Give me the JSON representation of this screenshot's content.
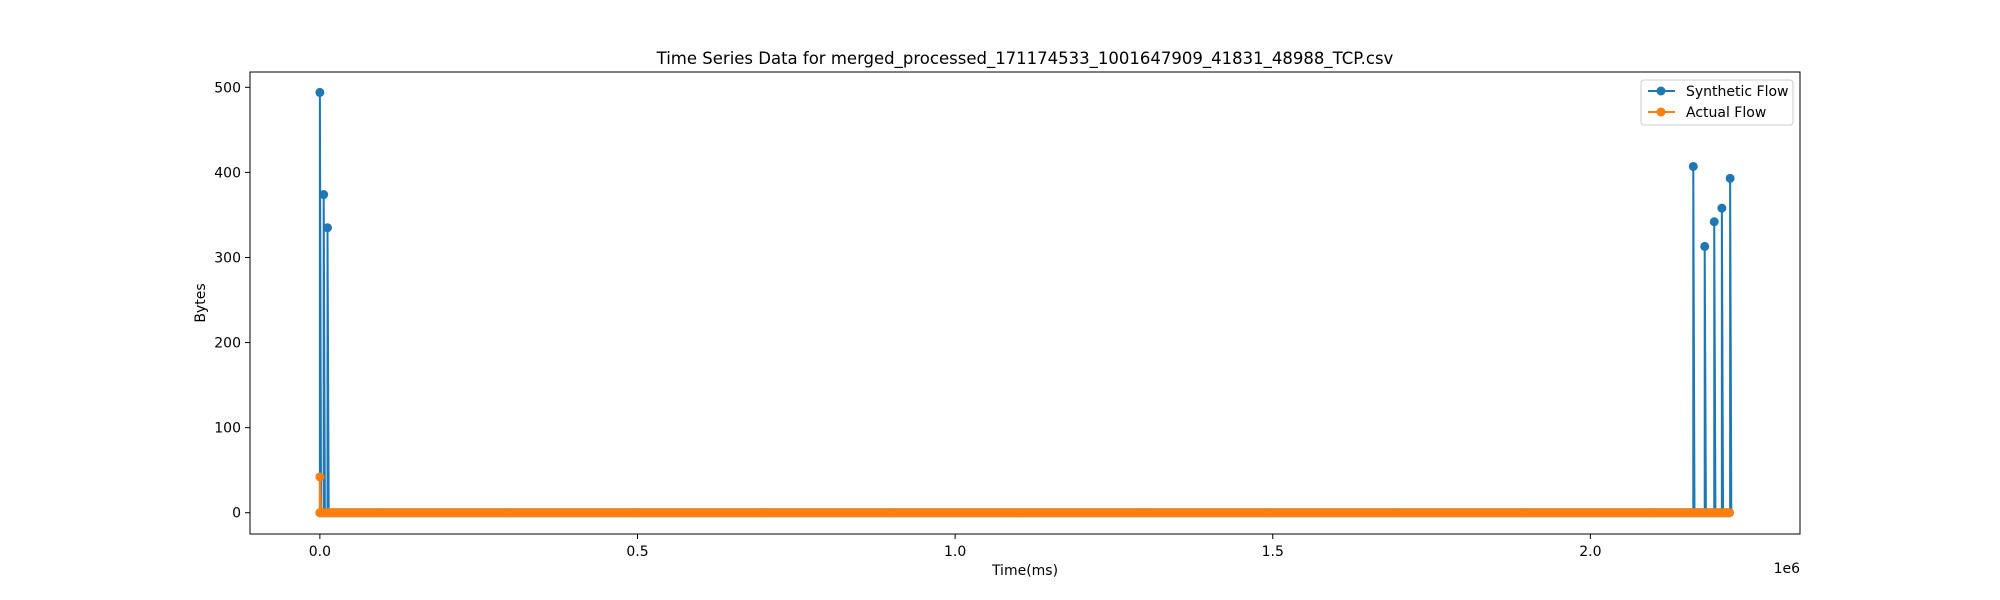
{
  "chart_data": {
    "type": "line",
    "title": "Time Series Data for merged_processed_171174533_1001647909_41831_48988_TCP.csv",
    "xlabel": "Time(ms)",
    "ylabel": "Bytes",
    "x_offset_label": "1e6",
    "xlim": [
      -110000,
      2330000
    ],
    "ylim": [
      -25,
      518
    ],
    "x_ticks": [
      0,
      500000,
      1000000,
      1500000,
      2000000
    ],
    "x_tick_labels": [
      "0.0",
      "0.5",
      "1.0",
      "1.5",
      "2.0"
    ],
    "y_ticks": [
      0,
      100,
      200,
      300,
      400,
      500
    ],
    "y_tick_labels": [
      "0",
      "100",
      "200",
      "300",
      "400",
      "500"
    ],
    "grid": false,
    "legend_position": "upper right",
    "x_start": 0,
    "x_end": 2220000,
    "series": [
      {
        "name": "Synthetic Flow",
        "color": "#1f77b4",
        "marker": "circle",
        "baseline": 0,
        "peaks": [
          {
            "x": 0,
            "y": 494
          },
          {
            "x": 6000,
            "y": 374
          },
          {
            "x": 12000,
            "y": 335
          },
          {
            "x": 2162000,
            "y": 407
          },
          {
            "x": 2180000,
            "y": 313
          },
          {
            "x": 2195000,
            "y": 342
          },
          {
            "x": 2207000,
            "y": 358
          },
          {
            "x": 2220000,
            "y": 393
          }
        ]
      },
      {
        "name": "Actual Flow",
        "color": "#ff7f0e",
        "marker": "circle",
        "baseline": 0,
        "peaks": [
          {
            "x": 0,
            "y": 42
          }
        ]
      }
    ]
  }
}
